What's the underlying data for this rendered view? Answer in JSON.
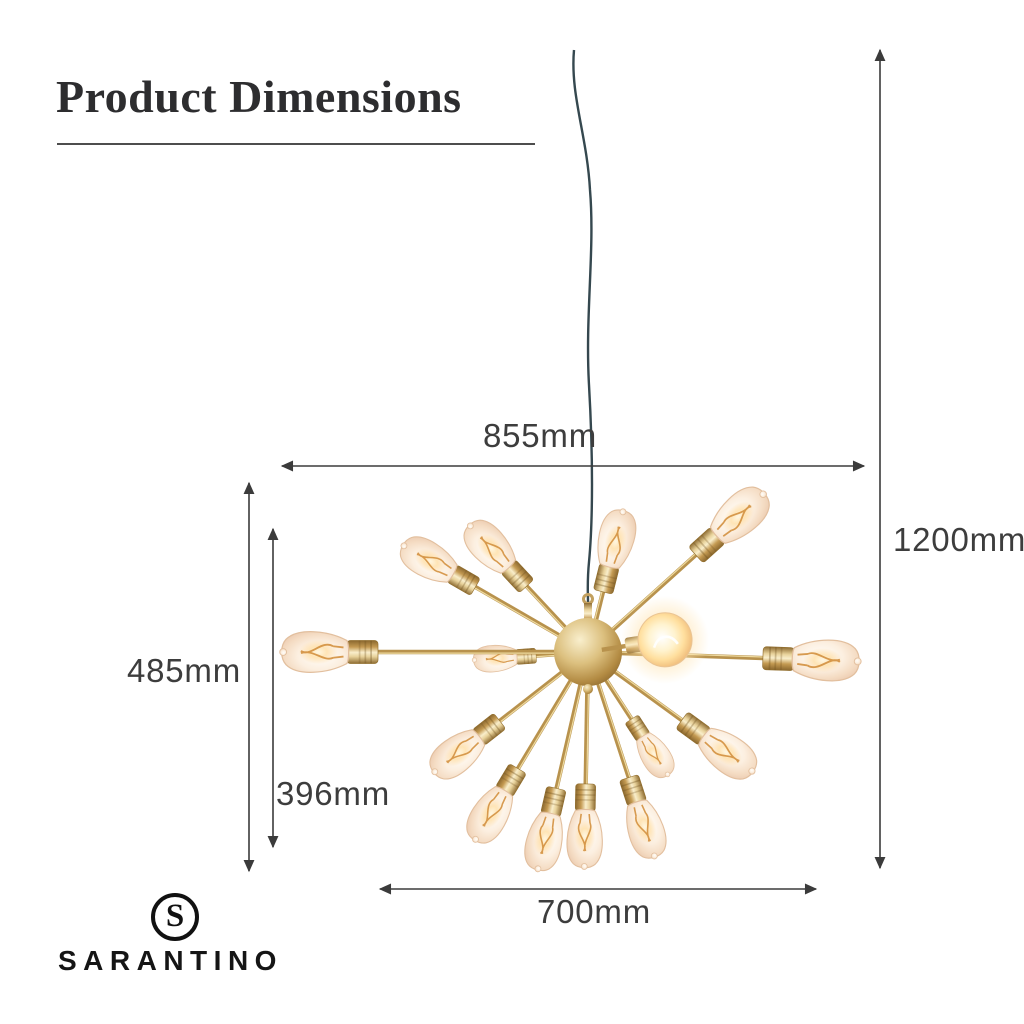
{
  "header": {
    "title": "Product Dimensions"
  },
  "dimensions": {
    "top_width": {
      "label": "855mm",
      "value": 855,
      "unit": "mm"
    },
    "total_drop": {
      "label": "1200mm",
      "value": 1200,
      "unit": "mm"
    },
    "fixture_height": {
      "label": "485mm",
      "value": 485,
      "unit": "mm"
    },
    "inner_height": {
      "label": "396mm",
      "value": 396,
      "unit": "mm"
    },
    "bottom_width": {
      "label": "700mm",
      "value": 700,
      "unit": "mm"
    }
  },
  "brand": {
    "monogram": "S",
    "name": "SARANTINO"
  },
  "figure": {
    "alt": "Gold sputnik chandelier with Edison filament bulbs hanging from a dark cord",
    "bulb_count": 16,
    "colors": {
      "brass": "#b8924d",
      "brass_light": "#eeda9f",
      "brass_dark": "#8a672e",
      "glass_edge": "#e2bf9e",
      "filament": "#d3903f",
      "cord": "#35484f",
      "dimension_line": "#3b3b3b",
      "label_text": "#3d3d3d",
      "title_text": "#2d2d2f",
      "logo_text": "#151515",
      "background": "#ffffff"
    }
  }
}
